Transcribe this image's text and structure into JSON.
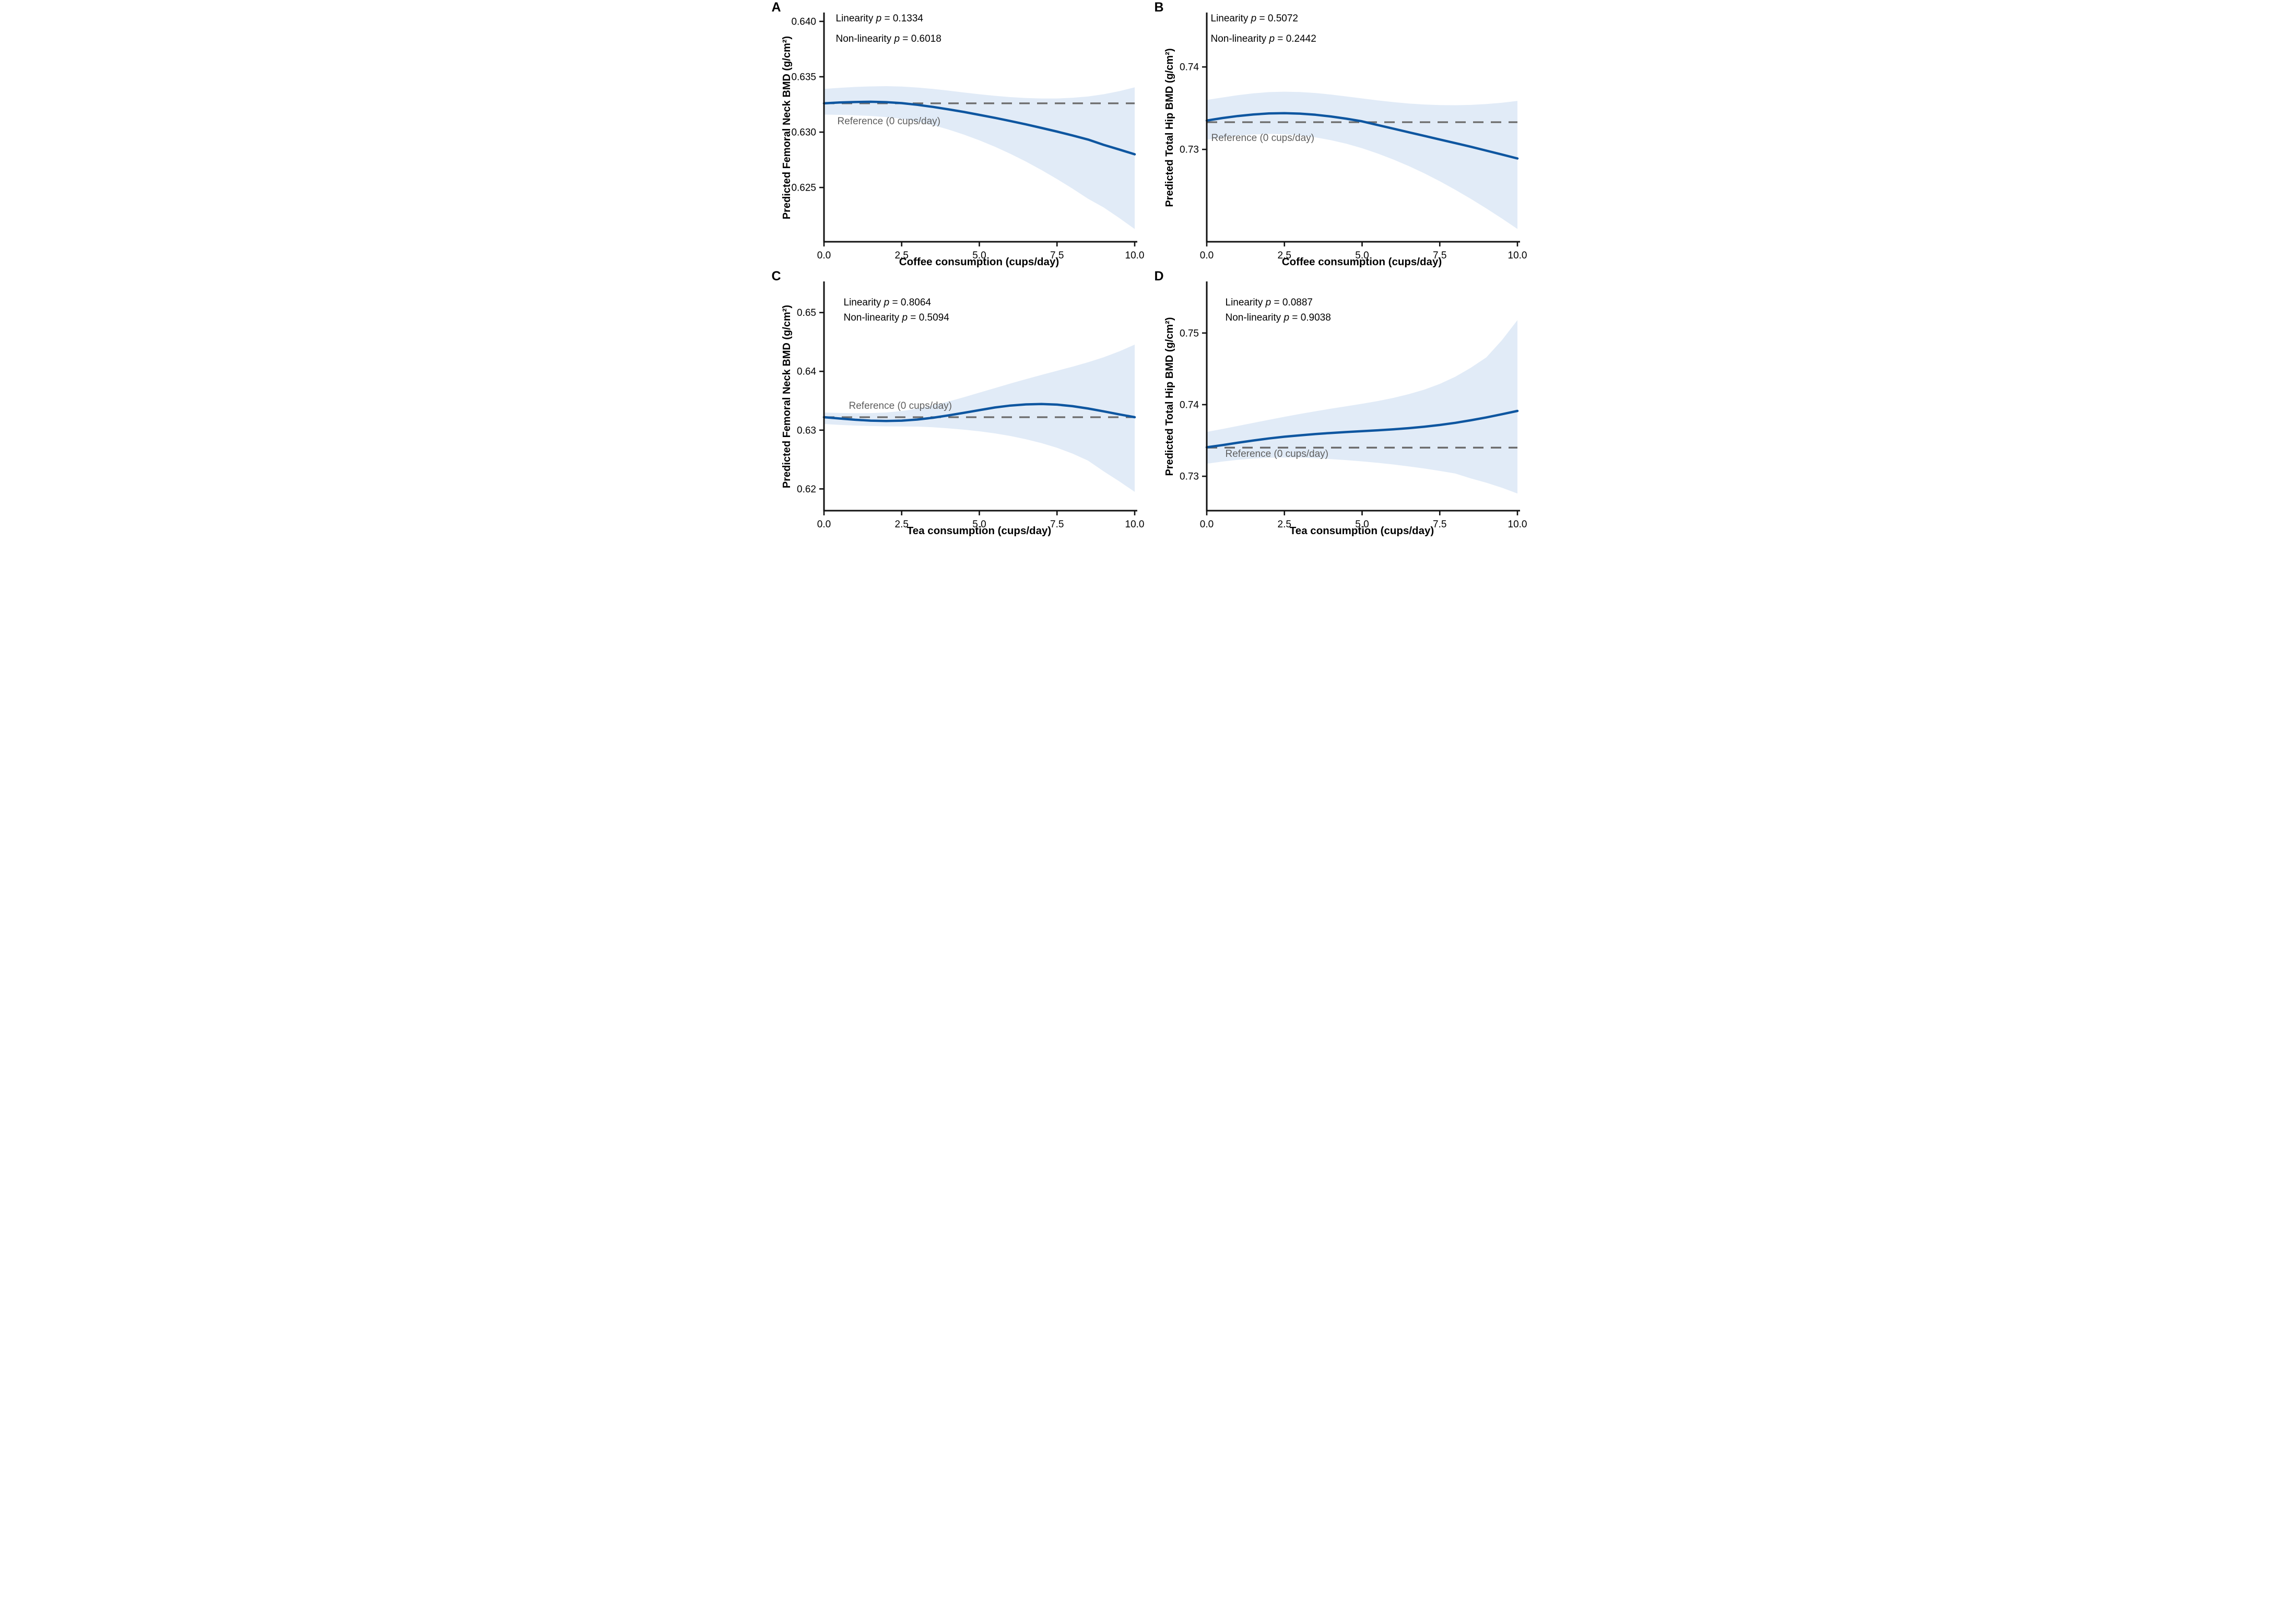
{
  "figure": {
    "background": "#ffffff",
    "symbols": {
      "p_symbol": "p",
      "equals": "="
    },
    "colors": {
      "curve": "#0E56A0",
      "band": "#E1EBF7",
      "reference_line": "#6B6B6B",
      "reference_text": "#5F5F5F",
      "axis": "#111111",
      "text": "#000000"
    }
  },
  "chart_data": [
    {
      "letter": "A",
      "type": "line",
      "annotations": {
        "linearity_label": "Linearity",
        "linearity_p": "0.1334",
        "nonlinearity_label": "Non-linearity",
        "nonlinearity_p": "0.6018"
      },
      "ylabel": "Predicted Femoral Neck BMD (g/cm²)",
      "xlabel": "Coffee consumption (cups/day)",
      "reference_label": "Reference (0 cups/day)",
      "reference_value": 0.6326,
      "xlim": [
        0,
        10
      ],
      "ylim": [
        0.6201,
        0.6408
      ],
      "xticks": [
        "0.0",
        "2.5",
        "5.0",
        "7.5",
        "10.0"
      ],
      "xtick_values": [
        0,
        2.5,
        5,
        7.5,
        10
      ],
      "yticks": [
        "0.625",
        "0.630",
        "0.635",
        "0.640"
      ],
      "ytick_values": [
        0.625,
        0.63,
        0.635,
        0.64
      ],
      "x": [
        0,
        0.5,
        1,
        1.5,
        2,
        2.5,
        3,
        3.5,
        4,
        4.5,
        5,
        5.5,
        6,
        6.5,
        7,
        7.5,
        8,
        8.5,
        9,
        9.5,
        10
      ],
      "curve": [
        0.6326,
        0.63268,
        0.63272,
        0.63274,
        0.63271,
        0.63262,
        0.63247,
        0.63228,
        0.63206,
        0.63182,
        0.63156,
        0.63129,
        0.631,
        0.6307,
        0.63038,
        0.63005,
        0.6297,
        0.62933,
        0.62885,
        0.62843,
        0.628
      ],
      "band_upper": [
        0.6339,
        0.634,
        0.63408,
        0.63413,
        0.63415,
        0.63412,
        0.63403,
        0.6339,
        0.63375,
        0.63358,
        0.63342,
        0.63328,
        0.63316,
        0.63308,
        0.63304,
        0.63304,
        0.6331,
        0.63322,
        0.63342,
        0.6337,
        0.63405
      ],
      "band_lower": [
        0.63158,
        0.63156,
        0.63152,
        0.63146,
        0.63136,
        0.6312,
        0.63096,
        0.63064,
        0.63024,
        0.62978,
        0.62926,
        0.62868,
        0.62804,
        0.62734,
        0.62658,
        0.62576,
        0.6249,
        0.62398,
        0.6232,
        0.62225,
        0.62125
      ]
    },
    {
      "letter": "B",
      "type": "line",
      "annotations": {
        "linearity_label": "Linearity",
        "linearity_p": "0.5072",
        "nonlinearity_label": "Non-linearity",
        "nonlinearity_p": "0.2442"
      },
      "ylabel": "Predicted Total Hip BMD (g/cm²)",
      "xlabel": "Coffee consumption (cups/day)",
      "reference_label": "Reference (0 cups/day)",
      "reference_value": 0.7333,
      "xlim": [
        0,
        10
      ],
      "ylim": [
        0.7188,
        0.7466
      ],
      "xticks": [
        "0.0",
        "2.5",
        "5.0",
        "7.5",
        "10.0"
      ],
      "xtick_values": [
        0,
        2.5,
        5,
        7.5,
        10
      ],
      "yticks": [
        "0.73",
        "0.74"
      ],
      "ytick_values": [
        0.73,
        0.74
      ],
      "x": [
        0,
        0.5,
        1,
        1.5,
        2,
        2.5,
        3,
        3.5,
        4,
        4.5,
        5,
        5.5,
        6,
        6.5,
        7,
        7.5,
        8,
        8.5,
        9,
        9.5,
        10
      ],
      "curve": [
        0.7335,
        0.7338,
        0.73405,
        0.73424,
        0.73436,
        0.7344,
        0.73434,
        0.7342,
        0.73399,
        0.73372,
        0.7334,
        0.73296,
        0.73252,
        0.73208,
        0.73164,
        0.7312,
        0.73076,
        0.73032,
        0.72985,
        0.72938,
        0.7289
      ],
      "band_upper": [
        0.736,
        0.7363,
        0.73658,
        0.7368,
        0.73695,
        0.737,
        0.73696,
        0.73684,
        0.73665,
        0.73642,
        0.73618,
        0.73595,
        0.73574,
        0.73557,
        0.73545,
        0.73538,
        0.73536,
        0.7354,
        0.7355,
        0.73566,
        0.73588
      ],
      "band_lower": [
        0.73118,
        0.73146,
        0.73168,
        0.73182,
        0.73188,
        0.73184,
        0.7317,
        0.73146,
        0.73112,
        0.73068,
        0.73014,
        0.7295,
        0.72878,
        0.72798,
        0.7271,
        0.72614,
        0.7251,
        0.724,
        0.72284,
        0.72162,
        0.72035
      ]
    },
    {
      "letter": "C",
      "type": "line",
      "annotations": {
        "linearity_label": "Linearity",
        "linearity_p": "0.8064",
        "nonlinearity_label": "Non-linearity",
        "nonlinearity_p": "0.5094"
      },
      "ylabel": "Predicted Femoral Neck BMD (g/cm²)",
      "xlabel": "Tea consumption (cups/day)",
      "reference_label": "Reference (0 cups/day)",
      "reference_value": 0.6322,
      "xlim": [
        0,
        10
      ],
      "ylim": [
        0.6163,
        0.6553
      ],
      "xticks": [
        "0.0",
        "2.5",
        "5.0",
        "7.5",
        "10.0"
      ],
      "xtick_values": [
        0,
        2.5,
        5,
        7.5,
        10
      ],
      "yticks": [
        "0.62",
        "0.63",
        "0.64",
        "0.65"
      ],
      "ytick_values": [
        0.62,
        0.63,
        0.64,
        0.65
      ],
      "x": [
        0,
        0.5,
        1,
        1.5,
        2,
        2.5,
        3,
        3.5,
        4,
        4.5,
        5,
        5.5,
        6,
        6.5,
        7,
        7.5,
        8,
        8.5,
        9,
        9.5,
        10
      ],
      "curve": [
        0.6322,
        0.63198,
        0.63177,
        0.63162,
        0.63156,
        0.63162,
        0.6318,
        0.6321,
        0.6325,
        0.63295,
        0.6334,
        0.63385,
        0.63418,
        0.63438,
        0.63444,
        0.63434,
        0.63408,
        0.63368,
        0.6332,
        0.63268,
        0.6322
      ],
      "band_upper": [
        0.633,
        0.63292,
        0.63288,
        0.6329,
        0.633,
        0.63325,
        0.63365,
        0.6342,
        0.63487,
        0.6356,
        0.63638,
        0.63716,
        0.63793,
        0.63868,
        0.6394,
        0.6401,
        0.6408,
        0.64155,
        0.6424,
        0.6434,
        0.64455
      ],
      "band_lower": [
        0.63105,
        0.6309,
        0.63078,
        0.6307,
        0.63065,
        0.63062,
        0.6306,
        0.6305,
        0.6303,
        0.63008,
        0.6298,
        0.62945,
        0.629,
        0.62845,
        0.6278,
        0.627,
        0.626,
        0.6248,
        0.623,
        0.6213,
        0.6195
      ]
    },
    {
      "letter": "D",
      "type": "line",
      "annotations": {
        "linearity_label": "Linearity",
        "linearity_p": "0.0887",
        "nonlinearity_label": "Non-linearity",
        "nonlinearity_p": "0.9038"
      },
      "ylabel": "Predicted Total Hip BMD (g/cm²)",
      "xlabel": "Tea consumption (cups/day)",
      "reference_label": "Reference (0 cups/day)",
      "reference_value": 0.734,
      "xlim": [
        0,
        10
      ],
      "ylim": [
        0.7252,
        0.7572
      ],
      "xticks": [
        "0.0",
        "2.5",
        "5.0",
        "7.5",
        "10.0"
      ],
      "xtick_values": [
        0,
        2.5,
        5,
        7.5,
        10
      ],
      "yticks": [
        "0.73",
        "0.74",
        "0.75"
      ],
      "ytick_values": [
        0.73,
        0.74,
        0.75
      ],
      "x": [
        0,
        0.5,
        1,
        1.5,
        2,
        2.5,
        3,
        3.5,
        4,
        4.5,
        5,
        5.5,
        6,
        6.5,
        7,
        7.5,
        8,
        8.5,
        9,
        9.5,
        10
      ],
      "curve": [
        0.73405,
        0.73435,
        0.73468,
        0.735,
        0.73528,
        0.73552,
        0.73572,
        0.7359,
        0.73605,
        0.73618,
        0.7363,
        0.73642,
        0.73656,
        0.73672,
        0.73692,
        0.73716,
        0.73746,
        0.73782,
        0.73822,
        0.73866,
        0.73912
      ],
      "band_upper": [
        0.7362,
        0.7366,
        0.73702,
        0.73745,
        0.73788,
        0.7383,
        0.7387,
        0.73908,
        0.73944,
        0.73978,
        0.74012,
        0.7405,
        0.74094,
        0.74146,
        0.7421,
        0.7429,
        0.7439,
        0.74515,
        0.7466,
        0.749,
        0.7518
      ],
      "band_lower": [
        0.73175,
        0.73205,
        0.7323,
        0.73248,
        0.73258,
        0.73262,
        0.7326,
        0.73252,
        0.7324,
        0.73225,
        0.73208,
        0.73188,
        0.73165,
        0.73138,
        0.73108,
        0.73075,
        0.73038,
        0.7297,
        0.7291,
        0.7284,
        0.7276
      ]
    }
  ]
}
